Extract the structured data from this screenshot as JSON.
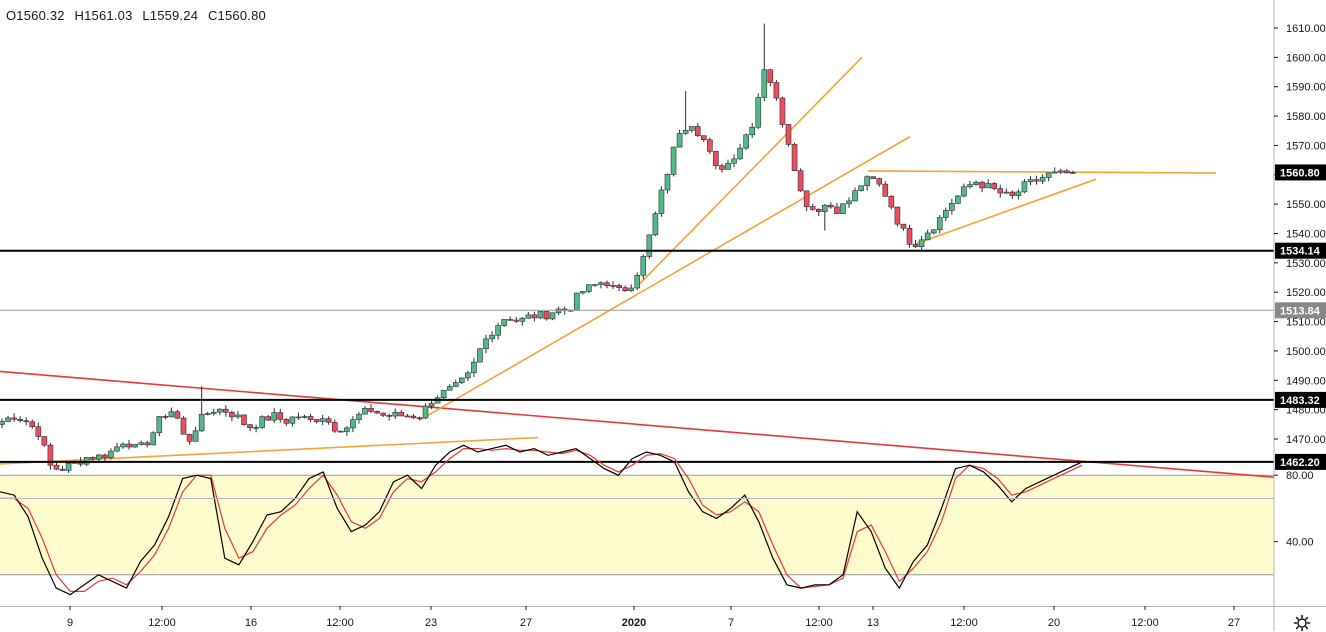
{
  "header": {
    "open": "O1560.32",
    "high": "H1561.03",
    "low": "L1559.24",
    "close": "C1560.80"
  },
  "colors": {
    "up": "#53b987",
    "down": "#eb4d5c",
    "trend_orange": "#f7a235",
    "trend_red": "#e53935",
    "level_line": "#000000",
    "stoch_k": "#000000",
    "stoch_d": "#e53935",
    "stoch_band": "#fffbcc"
  },
  "chart_data": [
    {
      "type": "candlestick",
      "series_name": "",
      "y_axis": {
        "range": [
          1457,
          1617
        ],
        "ticks": [
          1470,
          1480,
          1490,
          1500,
          1510,
          1520,
          1530,
          1540,
          1550,
          1560,
          1570,
          1580,
          1590,
          1600,
          1610
        ],
        "tick_labels": [
          "1470.00",
          "1480.00",
          "1490.00",
          "1500.00",
          "1510.00",
          "1520.00",
          "1530.00",
          "1540.00",
          "1550.00",
          "1560.00",
          "1570.00",
          "1580.00",
          "1590.00",
          "1600.00",
          "1610.00"
        ]
      },
      "x_axis": {
        "labels": [
          "9",
          "12:00",
          "16",
          "12:00",
          "23",
          "27",
          "2020",
          "7",
          "12:00",
          "13",
          "12:00",
          "20",
          "12:00",
          "27"
        ],
        "bold": [
          "2020"
        ]
      },
      "price_badges": [
        {
          "value": "1560.80",
          "color": "#000000",
          "text_color": "#ffffff"
        },
        {
          "value": "1534.14",
          "color": "#000000",
          "text_color": "#ffffff"
        },
        {
          "value": "1513.84",
          "color": "#888888",
          "text_color": "#ffffff"
        },
        {
          "value": "1483.32",
          "color": "#000000",
          "text_color": "#ffffff"
        },
        {
          "value": "1462.20",
          "color": "#000000",
          "text_color": "#ffffff"
        }
      ],
      "horizontal_levels": [
        1534.14,
        1513.84,
        1483.32,
        1462.2
      ],
      "close_path": [
        1476,
        1478,
        1476,
        1472,
        1460,
        1460,
        1462,
        1464,
        1464,
        1466,
        1470,
        1466,
        1470,
        1478,
        1480,
        1468,
        1476,
        1480,
        1480,
        1478,
        1474,
        1476,
        1478,
        1476,
        1478,
        1476,
        1478,
        1474,
        1474,
        1478,
        1480,
        1478,
        1478,
        1478,
        1478,
        1484,
        1486,
        1488,
        1492,
        1502,
        1508,
        1512,
        1510,
        1512,
        1512,
        1514,
        1514,
        1520,
        1522,
        1524,
        1520,
        1522,
        1530,
        1545,
        1560,
        1575,
        1578,
        1572,
        1562,
        1564,
        1570,
        1578,
        1598,
        1584,
        1570,
        1552,
        1548,
        1550,
        1548,
        1552,
        1558,
        1558,
        1552,
        1542,
        1536,
        1540,
        1544,
        1550,
        1554,
        1558,
        1556,
        1554,
        1552,
        1556,
        1558,
        1560,
        1560,
        1561
      ]
    },
    {
      "type": "line",
      "title": "",
      "y_axis": {
        "range": [
          0,
          100
        ],
        "ticks": [
          40,
          80
        ],
        "tick_labels": [
          "40.00",
          "80.00"
        ],
        "band": [
          20,
          80
        ]
      },
      "series": [
        {
          "values": [
            70,
            68,
            55,
            30,
            12,
            8,
            14,
            20,
            16,
            12,
            28,
            38,
            55,
            78,
            80,
            78,
            30,
            26,
            40,
            56,
            58,
            66,
            78,
            82,
            60,
            46,
            50,
            58,
            76,
            80,
            72,
            86,
            94,
            98,
            94,
            96,
            98,
            94,
            96,
            92,
            94,
            96,
            90,
            84,
            80,
            90,
            94,
            92,
            88,
            70,
            58,
            54,
            60,
            68,
            52,
            30,
            14,
            12,
            14,
            14,
            20,
            58,
            46,
            24,
            12,
            28,
            38,
            60,
            84,
            86,
            82,
            74,
            64,
            72,
            76,
            80,
            84,
            88
          ]
        },
        {
          "values": [
            66,
            66,
            60,
            42,
            20,
            10,
            10,
            16,
            18,
            14,
            22,
            32,
            48,
            70,
            80,
            80,
            48,
            30,
            34,
            48,
            56,
            62,
            72,
            80,
            68,
            52,
            48,
            54,
            70,
            78,
            76,
            82,
            90,
            96,
            96,
            95,
            96,
            95,
            95,
            94,
            93,
            95,
            92,
            86,
            82,
            86,
            92,
            93,
            90,
            78,
            62,
            56,
            58,
            64,
            58,
            38,
            20,
            12,
            13,
            14,
            18,
            46,
            50,
            34,
            16,
            24,
            34,
            52,
            78,
            86,
            84,
            78,
            68,
            70,
            74,
            78,
            82,
            86
          ]
        }
      ]
    }
  ]
}
